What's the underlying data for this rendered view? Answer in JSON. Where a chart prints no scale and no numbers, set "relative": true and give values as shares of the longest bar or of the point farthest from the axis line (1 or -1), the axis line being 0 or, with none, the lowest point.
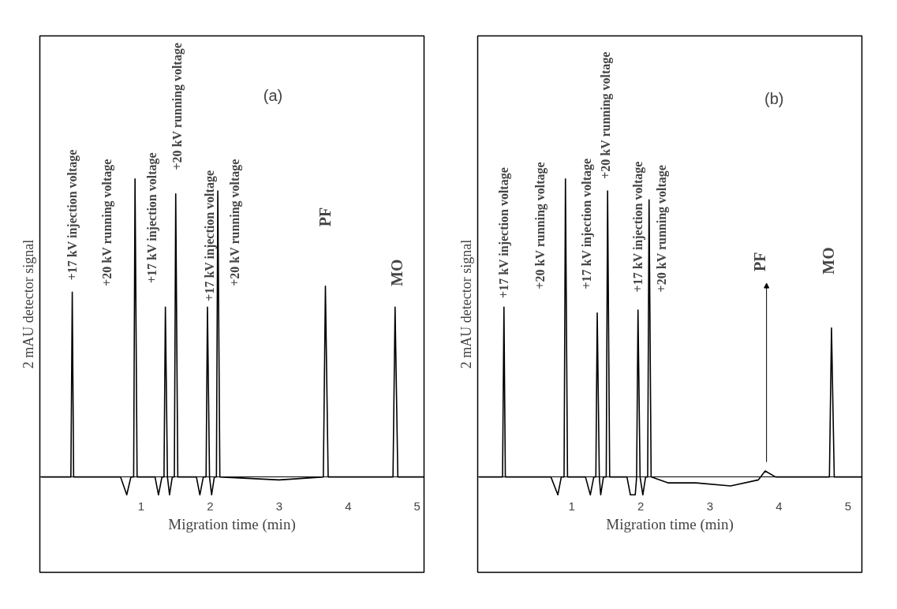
{
  "chart_data": [
    {
      "type": "line",
      "relative": true,
      "xlabel": "Migration time (min)",
      "ylabel": "2 mAU detector signal",
      "xlim": [
        -0.47,
        5.1
      ],
      "xticks": [
        1,
        2,
        3,
        4,
        5
      ],
      "grid": false,
      "marker": "none",
      "line_style": "solid",
      "series": [
        {
          "color": "#000000",
          "x": [
            -0.45,
            -0.02,
            0.0,
            0.02,
            0.7,
            0.79,
            0.85,
            0.89,
            0.91,
            0.94,
            1.2,
            1.25,
            1.3,
            1.33,
            1.35,
            1.38,
            1.41,
            1.45,
            1.48,
            1.5,
            1.53,
            1.8,
            1.85,
            1.9,
            1.94,
            1.96,
            1.99,
            2.02,
            2.06,
            2.09,
            2.11,
            2.14,
            3.0,
            3.64,
            3.67,
            3.71,
            4.65,
            4.68,
            4.72,
            5.1
          ],
          "values": [
            0,
            0,
            0.62,
            0,
            0,
            -0.06,
            0,
            0,
            1,
            0,
            0,
            -0.06,
            0,
            0,
            0.57,
            0,
            -0.06,
            0,
            0,
            0.95,
            0,
            0,
            -0.06,
            0,
            0,
            0.57,
            0,
            -0.06,
            0,
            0,
            0.96,
            0,
            -0.01,
            0,
            0.64,
            0,
            0,
            0.57,
            0,
            0
          ]
        }
      ],
      "annotations": [
        "+17 kV injection voltage",
        "+20 kV running  voltage",
        "+17 kV injection voltage",
        "+20 kV running  voltage",
        "+17 kV injection voltage",
        "+20 kV running  voltage",
        "PF",
        "MO",
        "(a)"
      ]
    },
    {
      "type": "line",
      "relative": true,
      "xlabel": "Migration time (min)",
      "ylabel": "2 mAU detector signal",
      "xlim": [
        -0.36,
        5.2
      ],
      "xticks": [
        1,
        2,
        3,
        4,
        5
      ],
      "grid": false,
      "marker": "none",
      "line_style": "solid",
      "series": [
        {
          "color": "#000000",
          "x": [
            -0.34,
            0.0,
            0.02,
            0.04,
            0.7,
            0.8,
            0.85,
            0.89,
            0.91,
            0.94,
            1.2,
            1.27,
            1.32,
            1.35,
            1.37,
            1.4,
            1.42,
            1.46,
            1.5,
            1.52,
            1.55,
            1.8,
            1.85,
            1.92,
            1.94,
            1.96,
            1.99,
            2.03,
            2.07,
            2.1,
            2.12,
            2.15,
            2.4,
            2.8,
            3.3,
            3.7,
            3.8,
            3.95,
            4.3,
            4.73,
            4.76,
            4.8,
            5.2
          ],
          "values": [
            0,
            0,
            0.57,
            0,
            0,
            -0.06,
            0,
            0,
            1,
            0,
            0,
            -0.06,
            0,
            0,
            0.55,
            0,
            -0.06,
            0,
            0,
            0.96,
            0,
            0,
            -0.06,
            -0.06,
            0,
            0.56,
            0,
            -0.06,
            0,
            0,
            0.93,
            0,
            -0.02,
            -0.02,
            -0.03,
            -0.01,
            0.02,
            0,
            0,
            0,
            0.5,
            0,
            0
          ]
        }
      ],
      "annotations": [
        "+17 kV injection voltage",
        "+20 kV running  voltage",
        "+17 kV injection voltage",
        "+20 kV running  voltage",
        "+17 kV injection voltage",
        "+20 kV running  voltage",
        "PF",
        "MO",
        "(b)"
      ]
    }
  ]
}
